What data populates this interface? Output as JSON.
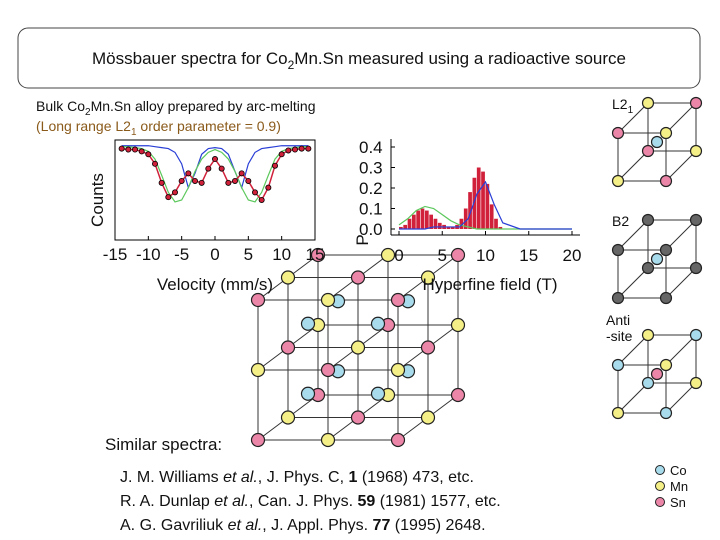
{
  "title": {
    "parts": [
      "Mössbauer spectra for Co",
      "2",
      "Mn.Sn measured using a radioactive source"
    ]
  },
  "sample": {
    "line1": [
      "Bulk Co",
      "2",
      "Mn.Sn alloy prepared by arc-melting"
    ],
    "line2": [
      "(Long range L2",
      "1",
      " order parameter = 0.9)"
    ]
  },
  "chart_data": [
    {
      "type": "line",
      "y_label": "Counts",
      "x_label": "Velocity  (mm/s)",
      "x": [
        -14,
        -13,
        -12,
        -11,
        -10,
        -9,
        -8,
        -7,
        -6,
        -5,
        -4,
        -3,
        -2,
        -1,
        0,
        1,
        2,
        3,
        4,
        5,
        6,
        7,
        8,
        9,
        10,
        11,
        12,
        13,
        14
      ],
      "xlim": [
        -15,
        15
      ],
      "xticks": [
        -15,
        -10,
        -5,
        0,
        5,
        10,
        15
      ],
      "ylim": [
        0,
        1.05
      ],
      "series": [
        {
          "color": "#2a3fd6",
          "values": [
            0.99,
            0.99,
            0.99,
            0.99,
            0.99,
            0.98,
            0.97,
            0.96,
            0.92,
            0.8,
            0.55,
            0.7,
            0.9,
            0.96,
            0.97,
            0.96,
            0.9,
            0.72,
            0.55,
            0.8,
            0.92,
            0.96,
            0.97,
            0.98,
            0.99,
            0.99,
            0.99,
            0.99,
            0.99
          ]
        },
        {
          "color": "#5cc85c",
          "values": [
            0.98,
            0.98,
            0.97,
            0.96,
            0.93,
            0.85,
            0.68,
            0.5,
            0.4,
            0.42,
            0.55,
            0.72,
            0.85,
            0.92,
            0.95,
            0.92,
            0.85,
            0.72,
            0.55,
            0.42,
            0.4,
            0.5,
            0.68,
            0.85,
            0.93,
            0.96,
            0.97,
            0.98,
            0.98
          ]
        },
        {
          "color": "#d0203a",
          "marker": "circle",
          "values": [
            0.96,
            0.95,
            0.95,
            0.93,
            0.9,
            0.8,
            0.6,
            0.45,
            0.5,
            0.62,
            0.7,
            0.62,
            0.6,
            0.75,
            0.85,
            0.75,
            0.6,
            0.62,
            0.7,
            0.62,
            0.5,
            0.42,
            0.55,
            0.78,
            0.9,
            0.94,
            0.95,
            0.96,
            0.96
          ]
        }
      ]
    },
    {
      "type": "histogram",
      "y_label": "P",
      "x_label": "Hyperfine field  (T)",
      "bins": [
        0,
        0.5,
        1,
        1.5,
        2,
        2.5,
        3,
        3.5,
        4,
        4.5,
        5,
        5.5,
        6,
        6.5,
        7,
        7.5,
        8,
        8.5,
        9,
        9.5,
        10,
        10.5,
        11,
        11.5,
        12
      ],
      "counts": [
        0.01,
        0.02,
        0.05,
        0.07,
        0.09,
        0.1,
        0.09,
        0.07,
        0.05,
        0.03,
        0.02,
        0.01,
        0.01,
        0.02,
        0.05,
        0.1,
        0.18,
        0.25,
        0.3,
        0.28,
        0.22,
        0.12,
        0.05,
        0.01
      ],
      "color": "#d0203a",
      "xlim": [
        0,
        20
      ],
      "xticks": [
        0,
        5,
        10,
        15,
        20
      ],
      "ylim": [
        0,
        0.4
      ],
      "yticks": [
        {
          "value": 0,
          "label": "0.0"
        },
        0.1,
        0.2,
        0.3,
        0.4
      ],
      "series": [
        {
          "color": "#5cc85c",
          "x": [
            0,
            1,
            2,
            3,
            4,
            5,
            6,
            7,
            8,
            9,
            10,
            11,
            12,
            14,
            16,
            18,
            20
          ],
          "values": [
            0.02,
            0.05,
            0.09,
            0.11,
            0.1,
            0.07,
            0.04,
            0.02,
            0.01,
            0,
            0,
            0,
            0,
            0,
            0,
            0,
            0
          ]
        },
        {
          "color": "#2a3fd6",
          "x": [
            0,
            1,
            2,
            3,
            4,
            5,
            6,
            7,
            8,
            9,
            10,
            11,
            12,
            14,
            16,
            18,
            20
          ],
          "values": [
            0,
            0,
            0,
            0,
            0.01,
            0.01,
            0.01,
            0.01,
            0.05,
            0.17,
            0.23,
            0.12,
            0.03,
            0,
            0,
            0,
            0
          ]
        }
      ]
    }
  ],
  "structures": {
    "l21": [
      "L2",
      "1"
    ],
    "b2": "B2",
    "antisite": [
      "Anti",
      "-site"
    ]
  },
  "legend": [
    "Co",
    "Mn",
    "Sn"
  ],
  "references": {
    "heading": "Similar spectra:",
    "lines": [
      [
        {
          "text": "J. M. Williams "
        },
        {
          "text": "et al.",
          "style": "italic"
        },
        {
          "text": ", J. Phys. C, "
        },
        {
          "text": "1",
          "style": "bold"
        },
        {
          "text": " (1968) 473, etc."
        }
      ],
      [
        {
          "text": "R. A. Dunlap "
        },
        {
          "text": "et al.",
          "style": "italic"
        },
        {
          "text": ", Can. J. Phys. "
        },
        {
          "text": "59",
          "style": "bold"
        },
        {
          "text": " (1981) 1577, etc."
        }
      ],
      [
        {
          "text": "A. G. Gavriliuk "
        },
        {
          "text": "et al.",
          "style": "italic"
        },
        {
          "text": ", J. Appl. Phys. "
        },
        {
          "text": "77",
          "style": "bold"
        },
        {
          "text": " (1995) 2648."
        }
      ]
    ]
  }
}
